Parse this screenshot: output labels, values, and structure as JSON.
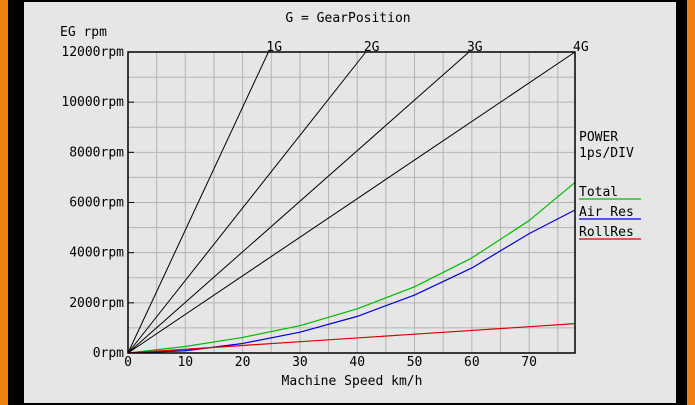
{
  "chart_data": {
    "type": "line",
    "title": "G = GearPosition",
    "ylabel": "EG rpm",
    "xlabel": "Machine Speed km/h",
    "xlim": [
      0,
      78
    ],
    "ylim": [
      0,
      12000
    ],
    "x_ticks": [
      0,
      10,
      20,
      30,
      40,
      50,
      60,
      70
    ],
    "y_ticks": [
      0,
      2000,
      4000,
      6000,
      8000,
      10000,
      12000
    ],
    "y_tick_labels": [
      "0rpm",
      "2000rpm",
      "4000rpm",
      "6000rpm",
      "8000rpm",
      "10000rpm",
      "12000rpm"
    ],
    "grid": true,
    "gears": [
      {
        "name": "1G",
        "x": [
          0,
          24.5
        ],
        "y": [
          0,
          12000
        ]
      },
      {
        "name": "2G",
        "x": [
          0,
          41.5
        ],
        "y": [
          0,
          12000
        ]
      },
      {
        "name": "3G",
        "x": [
          0,
          59.5
        ],
        "y": [
          0,
          12000
        ]
      },
      {
        "name": "4G",
        "x": [
          0,
          78
        ],
        "y": [
          0,
          12000
        ]
      }
    ],
    "power_axis": "POWER\n1ps/DIV",
    "power_axis_lines": [
      "POWER",
      "1ps/DIV"
    ],
    "series": [
      {
        "name": "Total",
        "color": "#00bb00",
        "x": [
          0,
          10,
          20,
          30,
          40,
          50,
          60,
          70,
          78
        ],
        "y": [
          0,
          260,
          620,
          1090,
          1760,
          2640,
          3790,
          5280,
          6800
        ]
      },
      {
        "name": "Air Res",
        "color": "#0000dd",
        "x": [
          0,
          10,
          20,
          30,
          40,
          50,
          60,
          70,
          78
        ],
        "y": [
          0,
          90,
          380,
          830,
          1460,
          2310,
          3390,
          4760,
          5700
        ]
      },
      {
        "name": "RollRes",
        "color": "#dd0000",
        "x": [
          0,
          10,
          20,
          30,
          40,
          50,
          60,
          70,
          78
        ],
        "y": [
          0,
          150,
          300,
          450,
          600,
          750,
          900,
          1050,
          1170
        ]
      }
    ]
  },
  "colors": {
    "background": "#e6e6e6",
    "border": "#f08010",
    "grid": "#b4b4b4",
    "gear_line": "#000000"
  }
}
